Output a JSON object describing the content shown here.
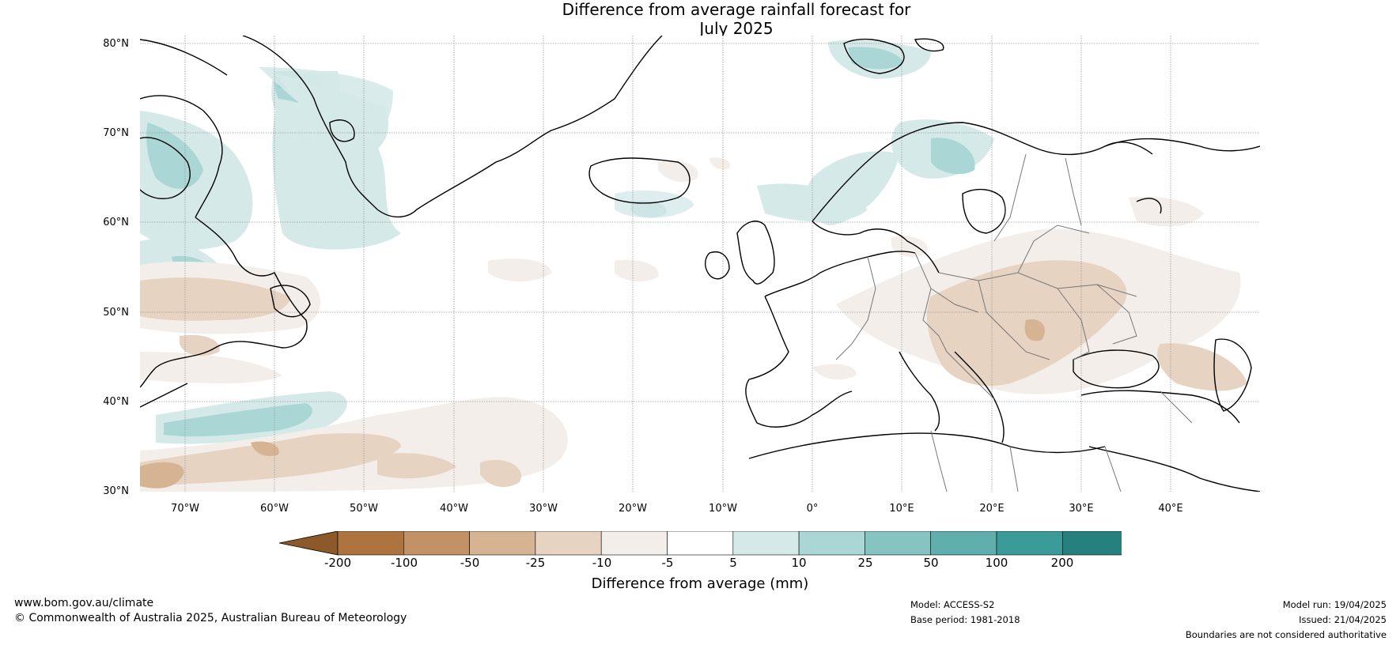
{
  "title_line1": "Difference from average rainfall forecast for",
  "title_line2": "July 2025",
  "lat_labels": [
    "80°N",
    "70°N",
    "60°N",
    "50°N",
    "40°N",
    "30°N"
  ],
  "lon_labels": [
    "70°W",
    "60°W",
    "50°W",
    "40°W",
    "30°W",
    "20°W",
    "10°W",
    "0°",
    "10°E",
    "20°E",
    "30°E",
    "40°E"
  ],
  "colorbar": {
    "ticks": [
      "-200",
      "-100",
      "-50",
      "-25",
      "-10",
      "-5",
      "5",
      "10",
      "25",
      "50",
      "100",
      "200"
    ],
    "colors": [
      "#8c5a2a",
      "#ad7440",
      "#c29266",
      "#d6b393",
      "#e6d3c2",
      "#f3eee9",
      "#ffffff",
      "#d6e9e9",
      "#aad6d5",
      "#86c4c2",
      "#5fafad",
      "#3b9b98",
      "#26807e",
      "#2d7472"
    ],
    "label": "Difference from average (mm)"
  },
  "footer": {
    "website": "www.bom.gov.au/climate",
    "copyright": "© Commonwealth of Australia 2025, Australian Bureau of Meteorology",
    "model": "Model: ACCESS-S2",
    "base_period": "Base period: 1981-2018",
    "model_run": "Model run: 19/04/2025",
    "issued": "Issued: 21/04/2025",
    "disclaimer": "Boundaries are not considered authoritative"
  }
}
